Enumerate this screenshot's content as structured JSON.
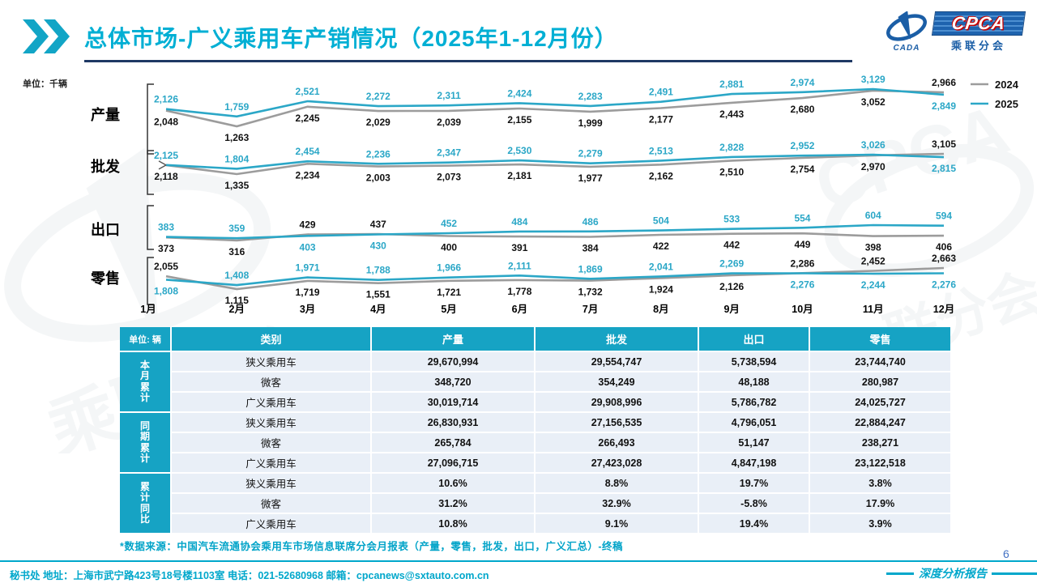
{
  "title": {
    "text": "总体市场-广义乘用车产销情况（2025年1-12月份）"
  },
  "logo": {
    "cada": "CADA",
    "cpca": "CPCA",
    "subtitle": "乘联分会"
  },
  "colors": {
    "title_cyan": "#00AFD4",
    "underline_navy": "#1F3864",
    "series_2024": "#9C9C9C",
    "series_2025": "#2BA7C7",
    "label_2024": "#111111",
    "label_2025": "#2BA7C7",
    "table_header_teal": "#16A3C4",
    "table_row_bg": "#E9EFF7",
    "footer_teal": "#00A7CB",
    "page_number_blue": "#4472C4"
  },
  "chart_data": {
    "type": "line",
    "unit_label": "单位：千辆",
    "x_categories": [
      "1月",
      "2月",
      "3月",
      "4月",
      "5月",
      "6月",
      "7月",
      "8月",
      "9月",
      "10月",
      "11月",
      "12月"
    ],
    "legend": [
      "2024",
      "2025"
    ],
    "legend_position": "top-right",
    "grid": false,
    "panels": [
      {
        "label": "产量",
        "series": [
          {
            "name": "2024",
            "values": [
              2048,
              1263,
              2245,
              2029,
              2039,
              2155,
              1999,
              2177,
              2443,
              2680,
              3052,
              2966
            ]
          },
          {
            "name": "2025",
            "values": [
              2126,
              1759,
              2521,
              2272,
              2311,
              2424,
              2283,
              2491,
              2881,
              2974,
              3129,
              2849
            ]
          }
        ]
      },
      {
        "label": "批发",
        "series": [
          {
            "name": "2024",
            "values": [
              2118,
              1335,
              2234,
              2003,
              2073,
              2181,
              1977,
              2162,
              2510,
              2754,
              2970,
              3105
            ]
          },
          {
            "name": "2025",
            "values": [
              2125,
              1804,
              2454,
              2236,
              2347,
              2530,
              2279,
              2513,
              2828,
              2952,
              3026,
              2815
            ]
          }
        ]
      },
      {
        "label": "出口",
        "series": [
          {
            "name": "2024",
            "values": [
              373,
              316,
              429,
              437,
              400,
              391,
              384,
              422,
              442,
              449,
              398,
              406
            ]
          },
          {
            "name": "2025",
            "values": [
              383,
              359,
              403,
              430,
              452,
              484,
              486,
              504,
              533,
              554,
              604,
              594
            ]
          }
        ]
      },
      {
        "label": "零售",
        "series": [
          {
            "name": "2024",
            "values": [
              2055,
              1115,
              1719,
              1551,
              1721,
              1778,
              1732,
              1924,
              2126,
              2286,
              2452,
              2663
            ]
          },
          {
            "name": "2025",
            "values": [
              1808,
              1408,
              1971,
              1788,
              1966,
              2111,
              1869,
              2041,
              2269,
              2276,
              2244,
              2276
            ]
          }
        ]
      }
    ]
  },
  "table": {
    "corner": "单位: 辆",
    "columns": [
      "类别",
      "产量",
      "批发",
      "出口",
      "零售"
    ],
    "groups": [
      {
        "label": "本月累计",
        "rows": [
          {
            "category": "狭义乘用车",
            "values": [
              "29,670,994",
              "29,554,747",
              "5,738,594",
              "23,744,740"
            ]
          },
          {
            "category": "微客",
            "values": [
              "348,720",
              "354,249",
              "48,188",
              "280,987"
            ]
          },
          {
            "category": "广义乘用车",
            "values": [
              "30,019,714",
              "29,908,996",
              "5,786,782",
              "24,025,727"
            ]
          }
        ]
      },
      {
        "label": "同期累计",
        "rows": [
          {
            "category": "狭义乘用车",
            "values": [
              "26,830,931",
              "27,156,535",
              "4,796,051",
              "22,884,247"
            ]
          },
          {
            "category": "微客",
            "values": [
              "265,784",
              "266,493",
              "51,147",
              "238,271"
            ]
          },
          {
            "category": "广义乘用车",
            "values": [
              "27,096,715",
              "27,423,028",
              "4,847,198",
              "23,122,518"
            ]
          }
        ]
      },
      {
        "label": "累计同比",
        "rows": [
          {
            "category": "狭义乘用车",
            "values": [
              "10.6%",
              "8.8%",
              "19.7%",
              "3.8%"
            ]
          },
          {
            "category": "微客",
            "values": [
              "31.2%",
              "32.9%",
              "-5.8%",
              "17.9%"
            ]
          },
          {
            "category": "广义乘用车",
            "values": [
              "10.8%",
              "9.1%",
              "19.4%",
              "3.9%"
            ]
          }
        ]
      }
    ]
  },
  "footnote": "*数据来源：中国汽车流通协会乘用车市场信息联席分会月报表（产量，零售，批发，出口，广义汇总）-终稿",
  "footer": {
    "contact_line": "秘书处  地址：上海市武宁路423号18号楼1103室  电话：021-52680968  邮箱：cpcanews@sxtauto.com.cn",
    "report_label": "深度分析报告",
    "page_number": "6"
  }
}
